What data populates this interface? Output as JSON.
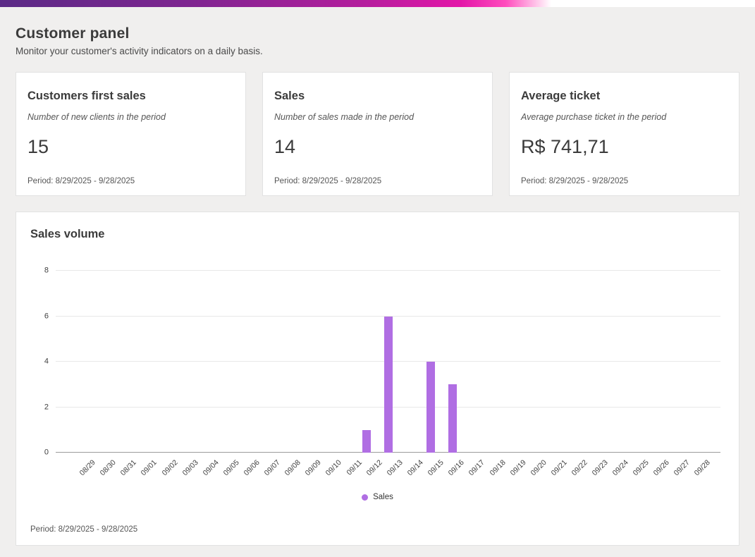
{
  "accent": {
    "gradient_start": "#5b2a86",
    "gradient_end": "#ff4dbd",
    "bar_color": "#b06ee3"
  },
  "header": {
    "title": "Customer panel",
    "subtitle": "Monitor your customer's activity indicators on a daily basis."
  },
  "cards": [
    {
      "title": "Customers first sales",
      "subtitle": "Number of new clients in the period",
      "value": "15",
      "period": "Period: 8/29/2025 - 9/28/2025"
    },
    {
      "title": "Sales",
      "subtitle": "Number of sales made in the period",
      "value": "14",
      "period": "Period: 8/29/2025 - 9/28/2025"
    },
    {
      "title": "Average ticket",
      "subtitle": "Average purchase ticket in the period",
      "value": "R$ 741,71",
      "period": "Period: 8/29/2025 - 9/28/2025"
    }
  ],
  "chart_card": {
    "title": "Sales volume",
    "legend_label": "Sales",
    "period": "Period: 8/29/2025 - 9/28/2025"
  },
  "chart_data": {
    "type": "bar",
    "title": "Sales volume",
    "categories": [
      "08/29",
      "08/30",
      "08/31",
      "09/01",
      "09/02",
      "09/03",
      "09/04",
      "09/05",
      "09/06",
      "09/07",
      "09/08",
      "09/09",
      "09/10",
      "09/11",
      "09/12",
      "09/13",
      "09/14",
      "09/15",
      "09/16",
      "09/17",
      "09/18",
      "09/19",
      "09/20",
      "09/21",
      "09/22",
      "09/23",
      "09/24",
      "09/25",
      "09/26",
      "09/27",
      "09/28"
    ],
    "values": [
      0,
      0,
      0,
      0,
      0,
      0,
      0,
      0,
      0,
      0,
      0,
      0,
      0,
      0,
      1,
      6,
      0,
      4,
      3,
      0,
      0,
      0,
      0,
      0,
      0,
      0,
      0,
      0,
      0,
      0,
      0
    ],
    "series_name": "Sales",
    "xlabel": "",
    "ylabel": "",
    "ylim": [
      0,
      8
    ],
    "yticks": [
      0,
      2,
      4,
      6,
      8
    ],
    "grid": true,
    "legend_position": "bottom",
    "bar_color": "#b06ee3"
  }
}
